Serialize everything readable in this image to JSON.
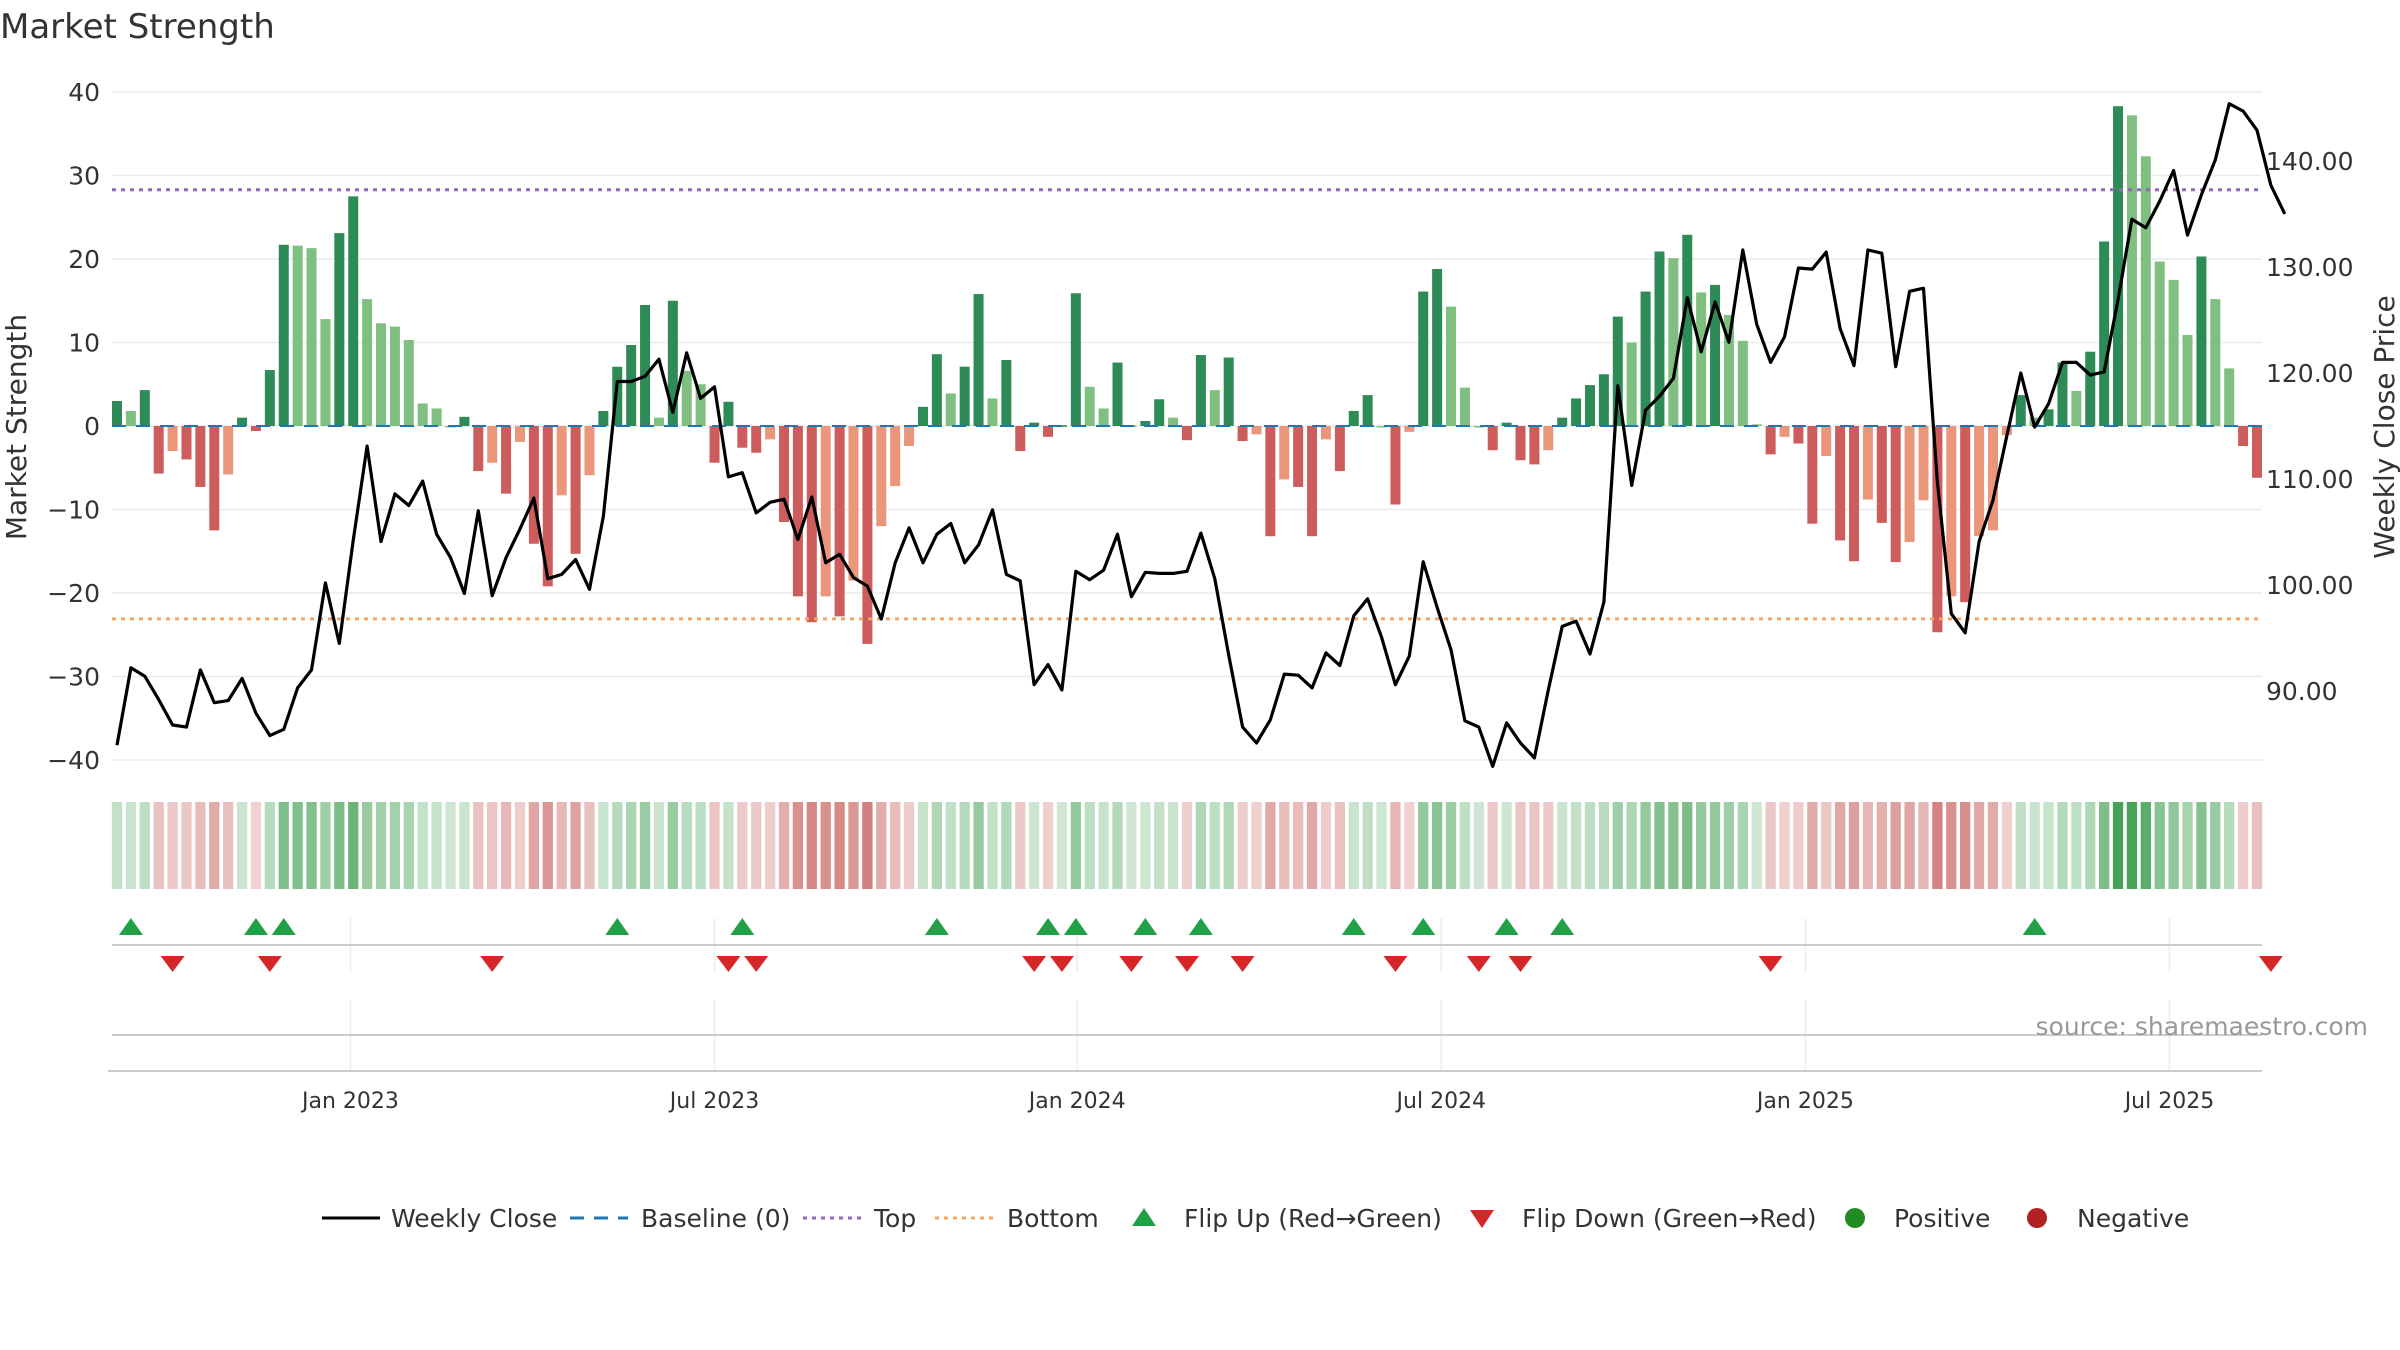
{
  "chart_data": {
    "type": "bar",
    "title": "Market Strength",
    "ylabel": "Market Strength",
    "y2label": "Weekly Close Price",
    "ylim": [
      -40,
      40
    ],
    "y2lim": [
      83.5,
      146.5
    ],
    "yticks": [
      "40",
      "30",
      "20",
      "10",
      "0",
      "−10",
      "−20",
      "−30",
      "−40"
    ],
    "y2ticks": [
      "140.00",
      "130.00",
      "120.00",
      "110.00",
      "100.00",
      "90.00"
    ],
    "xticks": [
      "Jan 2023",
      "Jul 2023",
      "Jan 2024",
      "Jul 2024",
      "Jan 2025",
      "Jul 2025"
    ],
    "top_line": 28.3,
    "bottom_line": -23.1,
    "source": "source: sharemaestro.com",
    "strength": [
      3.0,
      1.8,
      4.3,
      -5.7,
      -3.0,
      -4.0,
      -7.3,
      -12.5,
      -5.8,
      1.0,
      -0.6,
      6.7,
      21.7,
      21.6,
      21.3,
      12.8,
      23.1,
      27.5,
      15.2,
      12.3,
      11.9,
      10.3,
      2.7,
      2.1,
      0.0,
      1.1,
      -5.4,
      -4.4,
      -8.1,
      -1.9,
      -14.1,
      -19.2,
      -8.3,
      -15.3,
      -5.9,
      1.8,
      7.1,
      9.7,
      14.5,
      1.0,
      15.0,
      6.6,
      5.0,
      -4.4,
      2.9,
      -2.6,
      -3.2,
      -1.6,
      -11.5,
      -20.4,
      -23.5,
      -20.4,
      -22.8,
      -18.5,
      -26.1,
      -12.0,
      -7.2,
      -2.4,
      2.3,
      8.6,
      3.9,
      7.1,
      15.8,
      3.3,
      7.9,
      -3.0,
      0.4,
      -1.3,
      0.1,
      15.9,
      4.7,
      2.1,
      7.6,
      0.1,
      0.6,
      3.2,
      1.0,
      -1.7,
      8.5,
      4.3,
      8.2,
      -1.8,
      -1.0,
      -13.2,
      -6.4,
      -7.3,
      -13.2,
      -1.6,
      -5.4,
      1.8,
      3.7,
      0.0,
      -9.4,
      -0.7,
      16.1,
      18.8,
      14.3,
      4.6,
      0.0,
      -2.9,
      0.4,
      -4.1,
      -4.6,
      -2.9,
      1.0,
      3.3,
      4.9,
      6.2,
      13.1,
      10.0,
      16.1,
      20.9,
      20.1,
      22.9,
      16.0,
      16.9,
      13.3,
      10.2,
      0.2,
      -3.4,
      -1.3,
      -2.1,
      -11.7,
      -3.6,
      -13.7,
      -16.2,
      -8.8,
      -11.6,
      -16.3,
      -13.9,
      -8.9,
      -24.7,
      -20.4,
      -21.1,
      -13.2,
      -12.5,
      -1.1,
      3.7,
      1.0,
      2.0,
      7.6,
      4.2,
      8.9,
      22.1,
      38.3,
      37.2,
      32.3,
      19.7,
      17.5,
      10.9,
      20.3,
      15.2,
      6.9,
      -2.4,
      -6.2
    ],
    "close": [
      84.9,
      92.2,
      91.4,
      89.2,
      86.8,
      86.6,
      92.0,
      88.9,
      89.1,
      91.2,
      87.9,
      85.8,
      86.4,
      90.3,
      92.0,
      100.2,
      94.5,
      104.2,
      113.1,
      104.1,
      108.6,
      107.5,
      109.8,
      104.8,
      102.6,
      99.2,
      107.0,
      99.0,
      102.6,
      105.3,
      108.2,
      100.6,
      101.0,
      102.4,
      99.6,
      106.5,
      119.2,
      119.2,
      119.7,
      121.3,
      116.3,
      121.9,
      117.6,
      118.7,
      110.2,
      110.6,
      106.8,
      107.8,
      108.1,
      104.3,
      108.3,
      102.1,
      102.9,
      100.7,
      99.9,
      96.8,
      102.1,
      105.4,
      102.1,
      104.8,
      105.8,
      102.1,
      103.8,
      107.1,
      101.0,
      100.4,
      90.6,
      92.5,
      90.1,
      101.3,
      100.5,
      101.4,
      104.8,
      98.9,
      101.2,
      101.1,
      101.1,
      101.3,
      104.9,
      100.6,
      93.4,
      86.6,
      85.1,
      87.3,
      91.6,
      91.5,
      90.3,
      93.6,
      92.4,
      97.1,
      98.7,
      95.1,
      90.6,
      93.3,
      102.2,
      97.9,
      93.9,
      87.2,
      86.6,
      82.9,
      87.0,
      85.1,
      83.7,
      90.1,
      96.1,
      96.6,
      93.5,
      98.4,
      118.8,
      109.4,
      116.5,
      117.8,
      119.5,
      127.1,
      122.0,
      126.7,
      122.9,
      131.6,
      124.6,
      121.0,
      123.4,
      129.9,
      129.8,
      131.4,
      124.2,
      120.7,
      131.6,
      131.3,
      120.6,
      127.7,
      128.0,
      109.7,
      97.3,
      95.5,
      104.1,
      108.0,
      114.1,
      120.0,
      114.9,
      117.1,
      121.0,
      121.0,
      119.8,
      120.1,
      126.9,
      134.5,
      133.7,
      136.2,
      139.1,
      133.0,
      136.8,
      140.1,
      145.4,
      144.7,
      142.9,
      137.7,
      135.0
    ],
    "flip_up": [
      1,
      10,
      12,
      36,
      45,
      59,
      67,
      69,
      74,
      78,
      89,
      94,
      100,
      104,
      138
    ],
    "flip_down": [
      4,
      11,
      27,
      44,
      46,
      66,
      68,
      73,
      77,
      81,
      92,
      98,
      101,
      119,
      155
    ],
    "legend": {
      "close": "Weekly Close",
      "baseline": "Baseline (0)",
      "top": "Top",
      "bottom": "Bottom",
      "flip_up": "Flip Up (Red→Green)",
      "flip_down": "Flip Down (Green→Red)",
      "positive": "Positive",
      "negative": "Negative"
    },
    "colors": {
      "pos_strong": "#2e8b57",
      "pos_light": "#7fbf7f",
      "neg_strong": "#cd5c5c",
      "neg_light": "#e9967a",
      "line": "#000000",
      "baseline": "#1f77b4",
      "top": "#9467bd",
      "bottom": "#f4a460",
      "flip_up": "#22a045",
      "flip_down": "#d62728",
      "positive": "#228b22",
      "negative": "#b22222"
    }
  }
}
